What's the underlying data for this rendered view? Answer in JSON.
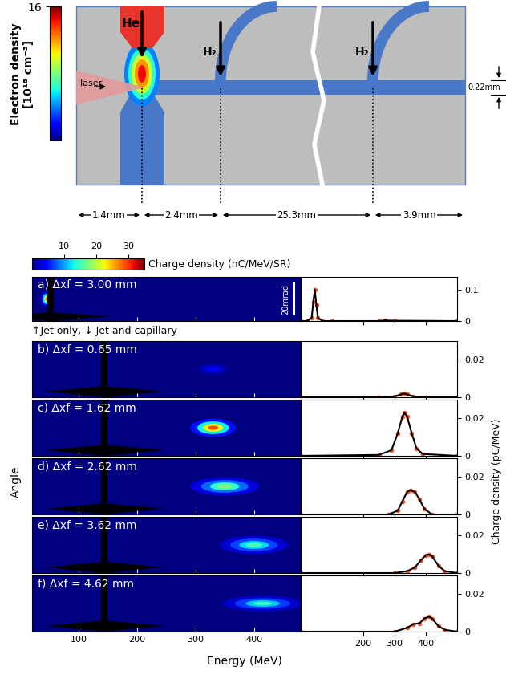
{
  "schematic": {
    "density_colorbar": {
      "label_lines": [
        "Electron density",
        "[10¹⁸ cm⁻³]"
      ],
      "range": [
        0,
        16
      ],
      "ticks": [
        16
      ]
    },
    "gas_jet": "He",
    "laser": "laser",
    "capillary_inlets": [
      "H₂",
      "H₂"
    ],
    "channel_width": "0.22mm",
    "distances": [
      "1.4mm",
      "2.4mm",
      "25.3mm",
      "3.9mm"
    ]
  },
  "charge_colorbar": {
    "label": "Charge density (nC/MeV/SR)",
    "range": [
      0,
      35
    ],
    "ticks": [
      10,
      20,
      30
    ]
  },
  "divider_text": "↑Jet only, ↓ Jet and capillary",
  "x_label": "Energy (MeV)",
  "image_y_label": "Angle",
  "line_y_label": "Charge density (pC/MeV)",
  "image_axis": {
    "xlim": [
      20,
      480
    ],
    "xticks": [
      100,
      200,
      300,
      400
    ]
  },
  "line_axis": {
    "xlim": [
      0,
      500
    ],
    "xticks": [
      200,
      300,
      400
    ]
  },
  "chart_data": [
    {
      "type": "spectrum",
      "title": "a) Δxf = 3.00 mm",
      "image_ylim": [
        -14,
        14
      ],
      "scale_bar": {
        "value": 20,
        "label": "20mrad"
      },
      "spot": {
        "energy": 45,
        "angle": 0,
        "energy_width": 5,
        "angle_width": 2.5,
        "peak": 30
      },
      "x": [
        0,
        20,
        35,
        40,
        45,
        50,
        55,
        70,
        100,
        250,
        270,
        300,
        500
      ],
      "values": [
        0,
        0,
        0.01,
        0.06,
        0.1,
        0.05,
        0.01,
        0,
        0,
        0,
        0.002,
        0.001,
        0
      ],
      "ylim": [
        0,
        0.14
      ],
      "yticks": [
        0,
        0.1
      ],
      "color": "#f05a28"
    },
    {
      "type": "spectrum",
      "title": "b) Δxf = 0.65 mm",
      "image_ylim": [
        -18,
        18
      ],
      "spot": {
        "energy": 330,
        "angle": 0,
        "energy_width": 15,
        "angle_width": 2,
        "peak": 5
      },
      "x": [
        0,
        250,
        300,
        320,
        330,
        340,
        360,
        400,
        500
      ],
      "values": [
        0,
        0,
        0.0005,
        0.0015,
        0.002,
        0.0015,
        0.0005,
        0,
        0
      ],
      "ylim": [
        0,
        0.03
      ],
      "yticks": [
        0,
        0.02
      ],
      "color": "#f05a28"
    },
    {
      "type": "spectrum",
      "title": "c) Δxf = 1.62 mm",
      "image_ylim": [
        -18,
        18
      ],
      "spot": {
        "energy": 330,
        "angle": 0,
        "energy_width": 20,
        "angle_width": 3,
        "peak": 32
      },
      "x": [
        0,
        250,
        290,
        310,
        325,
        332,
        340,
        355,
        370,
        390,
        500
      ],
      "values": [
        0,
        0.0005,
        0.003,
        0.012,
        0.021,
        0.023,
        0.021,
        0.012,
        0.004,
        0.001,
        0
      ],
      "ylim": [
        0,
        0.03
      ],
      "yticks": [
        0,
        0.02
      ],
      "color": "#f05a28"
    },
    {
      "type": "spectrum",
      "title": "d) Δxf = 2.62 mm",
      "image_ylim": [
        -18,
        18
      ],
      "spot": {
        "energy": 350,
        "angle": 0,
        "energy_width": 30,
        "angle_width": 3,
        "peak": 20
      },
      "x": [
        0,
        280,
        310,
        325,
        340,
        350,
        365,
        380,
        395,
        420,
        500
      ],
      "values": [
        0,
        0,
        0.002,
        0.007,
        0.012,
        0.013,
        0.012,
        0.008,
        0.003,
        0,
        0
      ],
      "ylim": [
        0,
        0.03
      ],
      "yticks": [
        0,
        0.02
      ],
      "color": "#f05a28"
    },
    {
      "type": "spectrum",
      "title": "e) Δxf = 3.62 mm",
      "image_ylim": [
        -18,
        18
      ],
      "spot": {
        "energy": 400,
        "angle": 0,
        "energy_width": 30,
        "angle_width": 3,
        "peak": 17
      },
      "x": [
        0,
        300,
        340,
        365,
        385,
        400,
        410,
        420,
        440,
        460,
        500
      ],
      "values": [
        0,
        0,
        0.001,
        0.003,
        0.007,
        0.0095,
        0.01,
        0.009,
        0.004,
        0.001,
        0
      ],
      "ylim": [
        0,
        0.03
      ],
      "yticks": [
        0,
        0.02
      ],
      "color": "#f05a28"
    },
    {
      "type": "spectrum",
      "title": "f) Δxf = 4.62 mm",
      "image_ylim": [
        -18,
        18
      ],
      "spot": {
        "energy": 415,
        "angle": 0,
        "energy_width": 35,
        "angle_width": 2.5,
        "peak": 16
      },
      "x": [
        0,
        300,
        340,
        360,
        380,
        395,
        410,
        420,
        440,
        460,
        500
      ],
      "values": [
        0,
        0,
        0.002,
        0.004,
        0.0045,
        0.007,
        0.008,
        0.007,
        0.003,
        0.001,
        0
      ],
      "ylim": [
        0,
        0.03
      ],
      "yticks": [
        0,
        0.02
      ],
      "color": "#f05a28"
    }
  ]
}
